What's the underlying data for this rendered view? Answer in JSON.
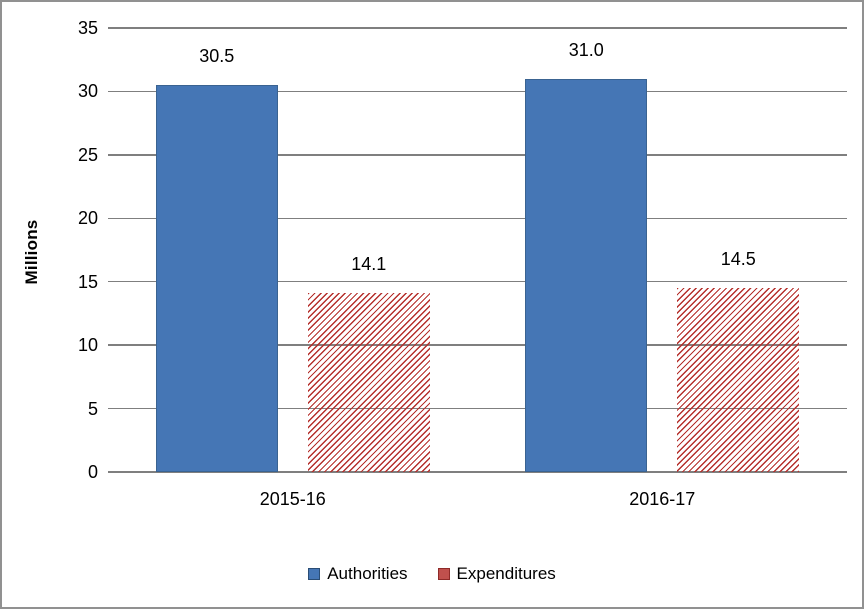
{
  "chart_data": {
    "type": "bar",
    "title": "",
    "xlabel": "",
    "ylabel": "Millions",
    "categories": [
      "2015-16",
      "2016-17"
    ],
    "series": [
      {
        "name": "Authorities",
        "values": [
          30.5,
          31.0
        ],
        "value_labels": [
          "30.5",
          "31.0"
        ],
        "style": "solid",
        "color": "#4576b5",
        "border_color": "#3a6391",
        "legend_fill": "#4576b5",
        "legend_border": "#2a4d75"
      },
      {
        "name": "Expenditures",
        "values": [
          14.1,
          14.5
        ],
        "value_labels": [
          "14.1",
          "14.5"
        ],
        "style": "hatch",
        "color": "#b52f2b",
        "legend_fill": "#c0504d",
        "legend_border": "#8e2a28"
      }
    ],
    "ylim": [
      0,
      35
    ],
    "ytick_step": 5,
    "ytick_labels": [
      "0",
      "5",
      "10",
      "15",
      "20",
      "25",
      "30",
      "35"
    ],
    "grid": true,
    "gridline_color": "#7f7f7f",
    "legend_position": "bottom"
  }
}
